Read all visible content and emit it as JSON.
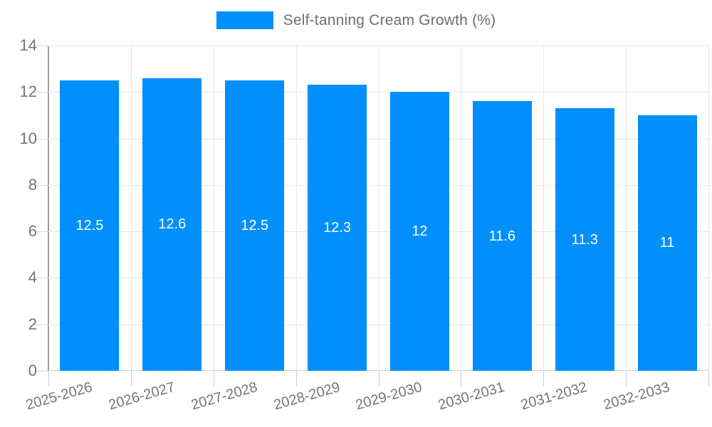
{
  "chart_data": {
    "type": "bar",
    "title": "Self-tanning Cream Growth (%)",
    "legend": {
      "label": "Self-tanning Cream Growth (%)",
      "position": "top"
    },
    "categories": [
      "2025-2026",
      "2026-2027",
      "2027-2028",
      "2028-2029",
      "2029-2030",
      "2030-2031",
      "2031-2032",
      "2032-2033"
    ],
    "values": [
      12.5,
      12.6,
      12.5,
      12.3,
      12,
      11.6,
      11.3,
      11
    ],
    "value_labels": [
      "12.5",
      "12.6",
      "12.5",
      "12.3",
      "12",
      "11.6",
      "11.3",
      "11"
    ],
    "ylim": [
      0,
      14
    ],
    "yticks": [
      0,
      2,
      4,
      6,
      8,
      10,
      12,
      14
    ],
    "grid": true,
    "colors": {
      "bar": "#008FFB",
      "value_label": "#ffffff",
      "axis_label": "#757575",
      "legend_text": "#6e6e6e",
      "gridline": "#e6e6e6",
      "y_axis_line": "#9e9e9e"
    }
  }
}
